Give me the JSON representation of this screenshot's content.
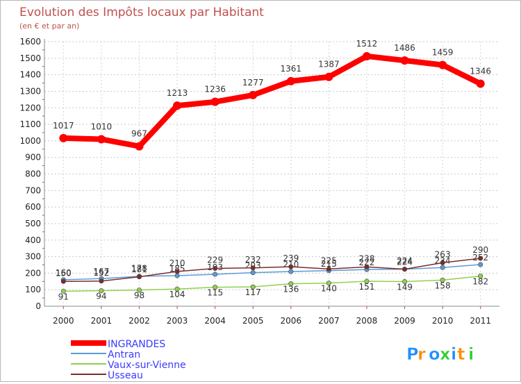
{
  "chart_data": {
    "type": "line",
    "title": "Evolution des Impôts locaux par Habitant",
    "subtitle": "(en € et par an)",
    "x": [
      "2000",
      "2001",
      "2002",
      "2003",
      "2004",
      "2005",
      "2006",
      "2007",
      "2008",
      "2009",
      "2010",
      "2011"
    ],
    "ylim": [
      0,
      1600
    ],
    "yticks": [
      0,
      100,
      200,
      300,
      400,
      500,
      600,
      700,
      800,
      900,
      1000,
      1100,
      1200,
      1300,
      1400,
      1500,
      1600
    ],
    "grid": true,
    "legend_position": "bottom-left",
    "series": [
      {
        "name": "INGRANDES",
        "color": "#ff0000",
        "values": [
          1017,
          1010,
          967,
          1213,
          1236,
          1277,
          1361,
          1387,
          1512,
          1486,
          1459,
          1346
        ],
        "labels": [
          "1017",
          "1010",
          "967",
          "1213",
          "1236",
          "1277",
          "1361",
          "1387",
          "1512",
          "1486",
          "1459",
          "1346"
        ]
      },
      {
        "name": "Antran",
        "color": "#5b9bd5",
        "values": [
          160,
          167,
          181,
          185,
          193,
          203,
          210,
          215,
          222,
          224,
          234,
          252
        ],
        "labels": [
          "160",
          "167",
          "181",
          "185",
          "193",
          "203",
          "210",
          "215",
          "222",
          "224",
          "234",
          "252"
        ]
      },
      {
        "name": "Vaux-sur-Vienne",
        "color": "#90d050",
        "values": [
          91,
          94,
          98,
          104,
          115,
          117,
          136,
          140,
          151,
          149,
          158,
          182
        ],
        "labels": [
          "91",
          "94",
          "98",
          "104",
          "115",
          "117",
          "136",
          "140",
          "151",
          "149",
          "158",
          "182"
        ]
      },
      {
        "name": "Usseau",
        "color": "#7b2c2c",
        "values": [
          150,
          152,
          178,
          210,
          229,
          232,
          239,
          225,
          238,
          224,
          263,
          290
        ],
        "labels": [
          "150",
          "152",
          "178",
          "210",
          "229",
          "232",
          "239",
          "225",
          "238",
          "224",
          "263",
          "290"
        ]
      }
    ]
  },
  "logo": {
    "text": "Proxiti",
    "colors": [
      "#1e90ff",
      "#ff8c00",
      "#1e90ff",
      "#32cd32",
      "#1e90ff",
      "#ff8c00",
      "#32cd32"
    ]
  }
}
